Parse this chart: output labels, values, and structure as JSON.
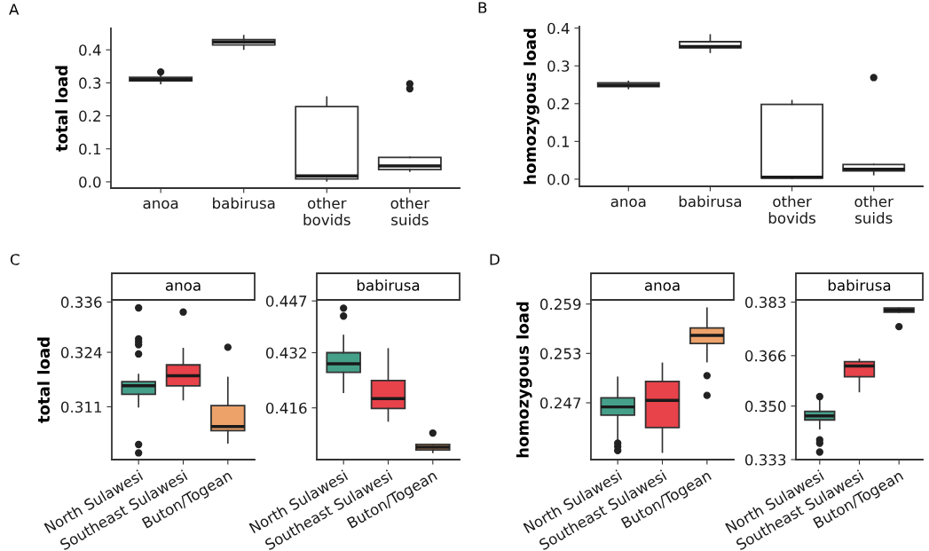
{
  "chart_data": [
    {
      "type": "box",
      "annotations": [
        "A"
      ],
      "ylabel": "total load",
      "categories": [
        "anoa",
        "babirusa",
        "other\nbovids",
        "other\nsuids"
      ],
      "colors": [
        "#ffffff",
        "#ffffff",
        "#ffffff",
        "#ffffff"
      ],
      "ylim": [
        -0.019,
        0.465
      ],
      "yticks": [
        {
          "value": 0,
          "label": "0.0"
        },
        0.1,
        0.2,
        0.3,
        0.4
      ],
      "boxes": [
        {
          "low": 0.298,
          "q1": 0.306,
          "median": 0.31,
          "q3": 0.317,
          "high": 0.323,
          "outliers": [
            0.333
          ]
        },
        {
          "low": 0.402,
          "q1": 0.415,
          "median": 0.424,
          "q3": 0.431,
          "high": 0.443
        },
        {
          "low": 0.003,
          "q1": 0.009,
          "median": 0.018,
          "q3": 0.228,
          "high": 0.257
        },
        {
          "low": 0.032,
          "q1": 0.037,
          "median": 0.048,
          "q3": 0.074,
          "high": 0.074,
          "outliers": [
            0.282,
            0.297
          ]
        }
      ]
    },
    {
      "type": "box",
      "annotations": [
        "B"
      ],
      "ylabel": "homozygous load",
      "categories": [
        "anoa",
        "babirusa",
        "other\nbovids",
        "other\nsuids"
      ],
      "colors": [
        "#ffffff",
        "#ffffff",
        "#ffffff",
        "#ffffff"
      ],
      "ylim": [
        -0.019,
        0.404
      ],
      "yticks": [
        {
          "value": 0,
          "label": "0.0"
        },
        0.1,
        0.2,
        0.3,
        0.4
      ],
      "boxes": [
        {
          "low": 0.24,
          "q1": 0.245,
          "median": 0.249,
          "q3": 0.255,
          "high": 0.259
        },
        {
          "low": 0.336,
          "q1": 0.348,
          "median": 0.351,
          "q3": 0.364,
          "high": 0.382
        },
        {
          "low": 0.002,
          "q1": 0.003,
          "median": 0.005,
          "q3": 0.198,
          "high": 0.208
        },
        {
          "low": 0.012,
          "q1": 0.022,
          "median": 0.026,
          "q3": 0.039,
          "high": 0.039,
          "outliers": [
            0.269
          ]
        }
      ]
    },
    {
      "type": "box",
      "annotations": [
        "C"
      ],
      "title": "anoa",
      "ylabel": "total load",
      "categories": [
        "North Sulawesi",
        "Southeast Sulawesi",
        "Buton/Togean"
      ],
      "colors": [
        "#45a08a",
        "#e8424a",
        "#eda26a"
      ],
      "ylim": [
        0.2984,
        0.3365
      ],
      "yticks": [
        {
          "value": 0.311,
          "label": "0.311"
        },
        {
          "value": 0.324,
          "label": "0.324"
        },
        {
          "value": 0.336,
          "label": "0.336"
        }
      ],
      "boxes": [
        {
          "low": 0.311,
          "q1": 0.314,
          "median": 0.316,
          "q3": 0.317,
          "high": 0.3187,
          "outliers": [
            0.3346,
            0.3272,
            0.3265,
            0.3258,
            0.3236,
            0.302,
            0.3
          ]
        },
        {
          "low": 0.3127,
          "q1": 0.316,
          "median": 0.3184,
          "q3": 0.321,
          "high": 0.3249,
          "outliers": [
            0.3336
          ]
        },
        {
          "low": 0.3024,
          "q1": 0.3053,
          "median": 0.3063,
          "q3": 0.3113,
          "high": 0.318,
          "outliers": [
            0.3252
          ]
        }
      ]
    },
    {
      "type": "box",
      "title": "babirusa",
      "categories": [
        "North Sulawesi",
        "Southeast Sulawesi",
        "Buton/Togean"
      ],
      "colors": [
        "#45a08a",
        "#e8424a",
        "#eda26a"
      ],
      "ylim": [
        0.401,
        0.4473
      ],
      "yticks": [
        {
          "value": 0.416,
          "label": "0.416"
        },
        {
          "value": 0.432,
          "label": "0.432"
        },
        {
          "value": 0.447,
          "label": "0.447"
        }
      ],
      "boxes": [
        {
          "low": 0.4205,
          "q1": 0.4263,
          "median": 0.4288,
          "q3": 0.432,
          "high": 0.437,
          "outliers": [
            0.4449,
            0.4426
          ]
        },
        {
          "low": 0.4122,
          "q1": 0.4158,
          "median": 0.4187,
          "q3": 0.4239,
          "high": 0.4331
        },
        {
          "low": 0.4031,
          "q1": 0.4038,
          "median": 0.4046,
          "q3": 0.4054,
          "high": 0.4054,
          "outliers": [
            0.4087
          ]
        }
      ]
    },
    {
      "type": "box",
      "annotations": [
        "D"
      ],
      "title": "anoa",
      "ylabel": "homozygous load",
      "categories": [
        "North Sulawesi",
        "Southeast Sulawesi",
        "Buton/Togean"
      ],
      "colors": [
        "#45a08a",
        "#e8424a",
        "#eda26a"
      ],
      "ylim": [
        0.2401,
        0.2595
      ],
      "yticks": [
        {
          "value": 0.247,
          "label": "0.247"
        },
        {
          "value": 0.253,
          "label": "0.253"
        },
        {
          "value": 0.259,
          "label": "0.259"
        }
      ],
      "boxes": [
        {
          "low": 0.2423,
          "q1": 0.2455,
          "median": 0.2465,
          "q3": 0.2476,
          "high": 0.2501,
          "outliers": [
            0.2421,
            0.2417,
            0.2412
          ]
        },
        {
          "low": 0.241,
          "q1": 0.244,
          "median": 0.2473,
          "q3": 0.2496,
          "high": 0.2518
        },
        {
          "low": 0.252,
          "q1": 0.2542,
          "median": 0.2552,
          "q3": 0.2561,
          "high": 0.2585,
          "outliers": [
            0.2503,
            0.2479
          ]
        }
      ]
    },
    {
      "type": "box",
      "title": "babirusa",
      "categories": [
        "North Sulawesi",
        "Southeast Sulawesi",
        "Buton/Togean"
      ],
      "colors": [
        "#45a08a",
        "#e8424a",
        "#eda26a"
      ],
      "ylim": [
        0.333,
        0.3837
      ],
      "yticks": [
        {
          "value": 0.333,
          "label": "0.333"
        },
        {
          "value": 0.35,
          "label": "0.350"
        },
        {
          "value": 0.366,
          "label": "0.366"
        },
        {
          "value": 0.383,
          "label": "0.383"
        }
      ],
      "boxes": [
        {
          "low": 0.3428,
          "q1": 0.3456,
          "median": 0.3469,
          "q3": 0.3483,
          "high": 0.3518,
          "outliers": [
            0.353,
            0.3393,
            0.3382,
            0.3354
          ]
        },
        {
          "low": 0.3546,
          "q1": 0.3593,
          "median": 0.3627,
          "q3": 0.3641,
          "high": 0.3648
        },
        {
          "low": 0.3798,
          "q1": 0.3798,
          "median": 0.3804,
          "q3": 0.3811,
          "high": 0.3811,
          "outliers": [
            0.3752
          ]
        }
      ]
    }
  ]
}
